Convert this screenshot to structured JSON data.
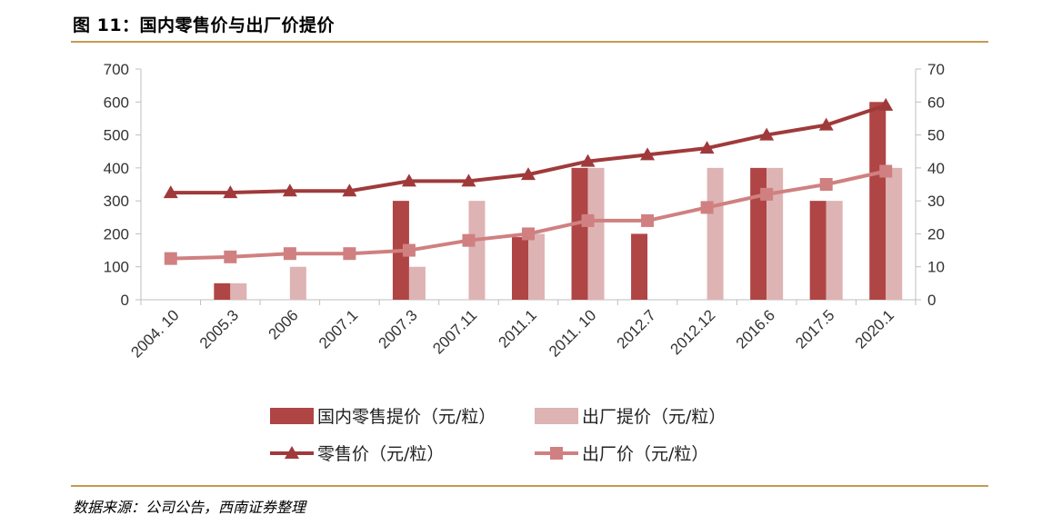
{
  "header": {
    "title": "图 11：国内零售价与出厂价提价"
  },
  "footer": {
    "source": "数据来源：公司公告，西南证券整理"
  },
  "colors": {
    "dark_bar": "#b04545",
    "light_bar": "#deb3b3",
    "dark_line": "#a03a3a",
    "light_line": "#d08080",
    "rule": "#c59a52",
    "axis": "#bfbfbf"
  },
  "chart_data": {
    "type": "bar+line",
    "categories": [
      "2004. 10",
      "2005.3",
      "2006",
      "2007.1",
      "2007.3",
      "2007.11",
      "2011.1",
      "2011. 10",
      "2012.7",
      "2012.12",
      "2016.6",
      "2017.5",
      "2020.1"
    ],
    "left_axis": {
      "ylim": [
        0,
        700
      ],
      "ticks": [
        "0",
        "100",
        "200",
        "300",
        "400",
        "500",
        "600",
        "700"
      ]
    },
    "right_axis": {
      "ylim": [
        0,
        70
      ],
      "ticks": [
        "0",
        "10",
        "20",
        "30",
        "40",
        "50",
        "60",
        "70"
      ]
    },
    "series": [
      {
        "name": "国内零售提价（元/粒）",
        "kind": "bar",
        "axis": "left",
        "color": "#b04545",
        "values": [
          0,
          50,
          0,
          0,
          300,
          0,
          190,
          400,
          200,
          0,
          400,
          300,
          600
        ]
      },
      {
        "name": "出厂提价（元/粒）",
        "kind": "bar",
        "axis": "left",
        "color": "#deb3b3",
        "values": [
          0,
          50,
          100,
          0,
          100,
          300,
          200,
          400,
          0,
          400,
          400,
          300,
          400
        ]
      },
      {
        "name": "零售价（元/粒）",
        "kind": "line",
        "marker": "triangle",
        "axis": "right",
        "color": "#a03a3a",
        "values": [
          32.5,
          32.5,
          33,
          33,
          36,
          36,
          38,
          42,
          44,
          46,
          50,
          53,
          59
        ]
      },
      {
        "name": "出厂价（元/粒）",
        "kind": "line",
        "marker": "square",
        "axis": "right",
        "color": "#d08080",
        "values": [
          12.5,
          13,
          14,
          14,
          15,
          18,
          20,
          24,
          24,
          28,
          32,
          35,
          39
        ]
      }
    ],
    "legend_position": "bottom"
  }
}
